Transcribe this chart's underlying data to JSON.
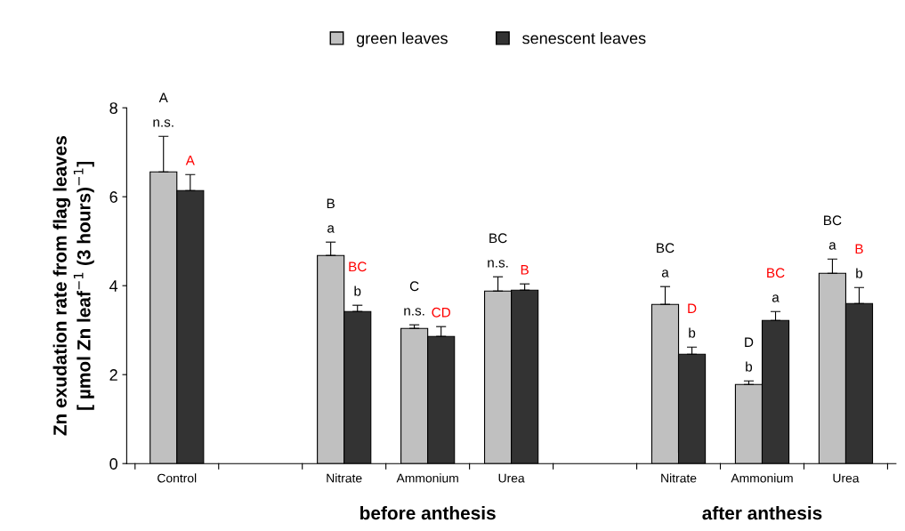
{
  "chart_data": {
    "type": "bar",
    "ylabel": "Zn exudation rate from flag leaves\n[ µmol Zn leaf$^{−1}$ (3 hours)$^{−1}$]",
    "categories": [
      "Control",
      null,
      "Nitrate",
      "Ammonium",
      "Urea",
      null,
      "Nitrate",
      "Ammonium",
      "Urea"
    ],
    "series": [
      {
        "name": "green leaves",
        "color": "#c0c0c0",
        "values": [
          6.56,
          null,
          4.68,
          3.04,
          3.88,
          null,
          3.58,
          1.78,
          4.28
        ],
        "errors": [
          [
            6.56,
            7.36
          ],
          null,
          [
            4.68,
            4.98
          ],
          [
            3.04,
            3.12
          ],
          [
            3.88,
            4.2
          ],
          null,
          [
            3.58,
            3.98
          ],
          [
            1.78,
            1.86
          ],
          [
            4.28,
            4.6
          ]
        ],
        "value_labels": [
          "A\nn.s.",
          null,
          "B\na",
          "C\nn.s.",
          "BC\nn.s.",
          null,
          "BC\na",
          "D\nb",
          "BC\na"
        ]
      },
      {
        "name": "senescent leaves",
        "color": "#333333",
        "values": [
          6.14,
          null,
          3.42,
          2.86,
          3.9,
          null,
          2.46,
          3.22,
          3.6
        ],
        "errors": [
          [
            6.14,
            6.5
          ],
          null,
          [
            3.42,
            3.56
          ],
          [
            2.86,
            3.08
          ],
          [
            3.9,
            4.04
          ],
          null,
          [
            2.46,
            2.62
          ],
          [
            3.22,
            3.42
          ],
          [
            3.6,
            3.96
          ]
        ],
        "value_labels": [
          "A",
          null,
          "BC\nb",
          "CD",
          "B",
          null,
          "D\nb",
          "BC\na",
          "B\nb"
        ]
      }
    ],
    "annotations": [
      "before anthesis",
      "after anthesis"
    ],
    "ylim": [
      0,
      8
    ],
    "yticks": [
      0,
      2,
      4,
      6,
      8
    ],
    "grid": false,
    "legend": "top"
  }
}
